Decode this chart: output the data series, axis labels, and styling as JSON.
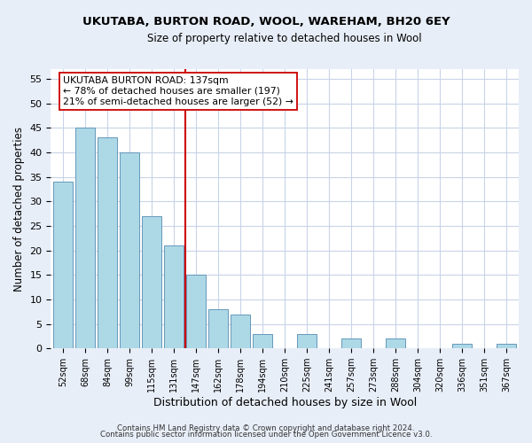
{
  "title1": "UKUTABA, BURTON ROAD, WOOL, WAREHAM, BH20 6EY",
  "title2": "Size of property relative to detached houses in Wool",
  "xlabel": "Distribution of detached houses by size in Wool",
  "ylabel": "Number of detached properties",
  "bar_labels": [
    "52sqm",
    "68sqm",
    "84sqm",
    "99sqm",
    "115sqm",
    "131sqm",
    "147sqm",
    "162sqm",
    "178sqm",
    "194sqm",
    "210sqm",
    "225sqm",
    "241sqm",
    "257sqm",
    "273sqm",
    "288sqm",
    "304sqm",
    "320sqm",
    "336sqm",
    "351sqm",
    "367sqm"
  ],
  "bar_values": [
    34,
    45,
    43,
    40,
    27,
    21,
    15,
    8,
    7,
    3,
    0,
    3,
    0,
    2,
    0,
    2,
    0,
    0,
    1,
    0,
    1
  ],
  "bar_color": "#add8e6",
  "bar_edge_color": "#6699bb",
  "vline_x_idx": 6,
  "vline_color": "#cc0000",
  "annotation_line1": "UKUTABA BURTON ROAD: 137sqm",
  "annotation_line2": "← 78% of detached houses are smaller (197)",
  "annotation_line3": "21% of semi-detached houses are larger (52) →",
  "ylim": [
    0,
    57
  ],
  "yticks": [
    0,
    5,
    10,
    15,
    20,
    25,
    30,
    35,
    40,
    45,
    50,
    55
  ],
  "footer1": "Contains HM Land Registry data © Crown copyright and database right 2024.",
  "footer2": "Contains public sector information licensed under the Open Government Licence v3.0.",
  "bg_color": "#e8eef8",
  "plot_bg_color": "#ffffff",
  "grid_color": "#c8d4e8"
}
